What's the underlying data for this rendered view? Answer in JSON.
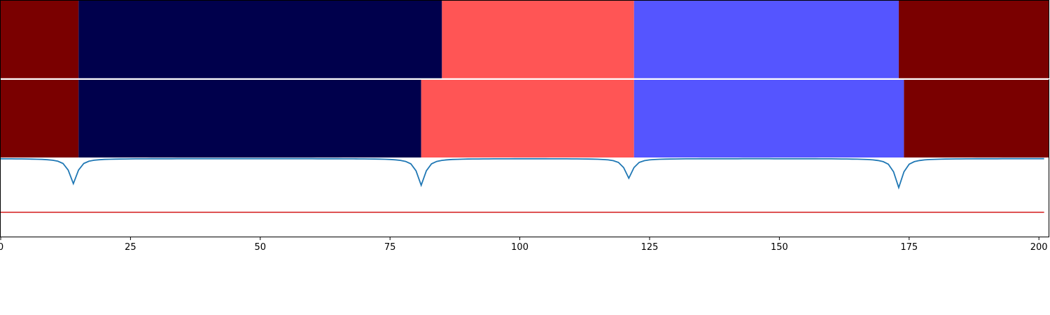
{
  "chart_data": {
    "type": "segmentation-strip",
    "x_range": [
      0,
      202
    ],
    "x_ticks": [
      0,
      25,
      50,
      75,
      100,
      125,
      150,
      175,
      200
    ],
    "x_tick_labels": [
      "0",
      "25",
      "50",
      "75",
      "100",
      "125",
      "150",
      "175",
      "200"
    ],
    "label_colors": {
      "A": "#7a0000",
      "B": "#00004c",
      "C": "#ff5555",
      "D": "#5555ff"
    },
    "rows": [
      {
        "segments": [
          {
            "start": 0,
            "end": 15,
            "label": "A"
          },
          {
            "start": 15,
            "end": 85,
            "label": "B"
          },
          {
            "start": 85,
            "end": 122,
            "label": "C"
          },
          {
            "start": 122,
            "end": 173,
            "label": "D"
          },
          {
            "start": 173,
            "end": 202,
            "label": "A"
          }
        ]
      },
      {
        "segments": [
          {
            "start": 0,
            "end": 15,
            "label": "A"
          },
          {
            "start": 15,
            "end": 81,
            "label": "B"
          },
          {
            "start": 81,
            "end": 122,
            "label": "C"
          },
          {
            "start": 122,
            "end": 174,
            "label": "D"
          },
          {
            "start": 174,
            "end": 202,
            "label": "A"
          }
        ]
      }
    ],
    "line_panel": {
      "y_range": [
        0,
        1
      ],
      "signal_color": "#1f77b4",
      "threshold_color": "#d62728",
      "threshold": 0.31,
      "baseline": 0.995,
      "dips": [
        {
          "x": 14,
          "depth": 0.32
        },
        {
          "x": 81,
          "depth": 0.34
        },
        {
          "x": 121,
          "depth": 0.25
        },
        {
          "x": 173,
          "depth": 0.37
        }
      ],
      "x_end": 201
    }
  }
}
